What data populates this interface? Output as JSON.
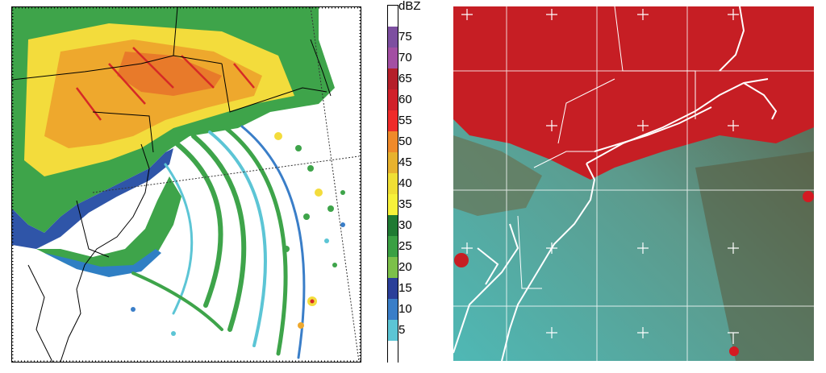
{
  "colorbar": {
    "unit": "dBZ",
    "labels": [
      "75",
      "70",
      "65",
      "60",
      "55",
      "50",
      "45",
      "40",
      "35",
      "30",
      "25",
      "20",
      "15",
      "10",
      "5"
    ],
    "colors": [
      "#ffffff",
      "#7d4fa0",
      "#a34fa3",
      "#b51f2a",
      "#d0202a",
      "#ef2b2a",
      "#f08a2a",
      "#e8b22e",
      "#f0df35",
      "#f7f23a",
      "#1f7a32",
      "#3aa043",
      "#7cc04a",
      "#2a3f99",
      "#3a7ec8",
      "#5cc5d5",
      "#ffffff"
    ]
  },
  "panels": {
    "left": "radar-reflectivity",
    "right": "satellite-composite"
  }
}
